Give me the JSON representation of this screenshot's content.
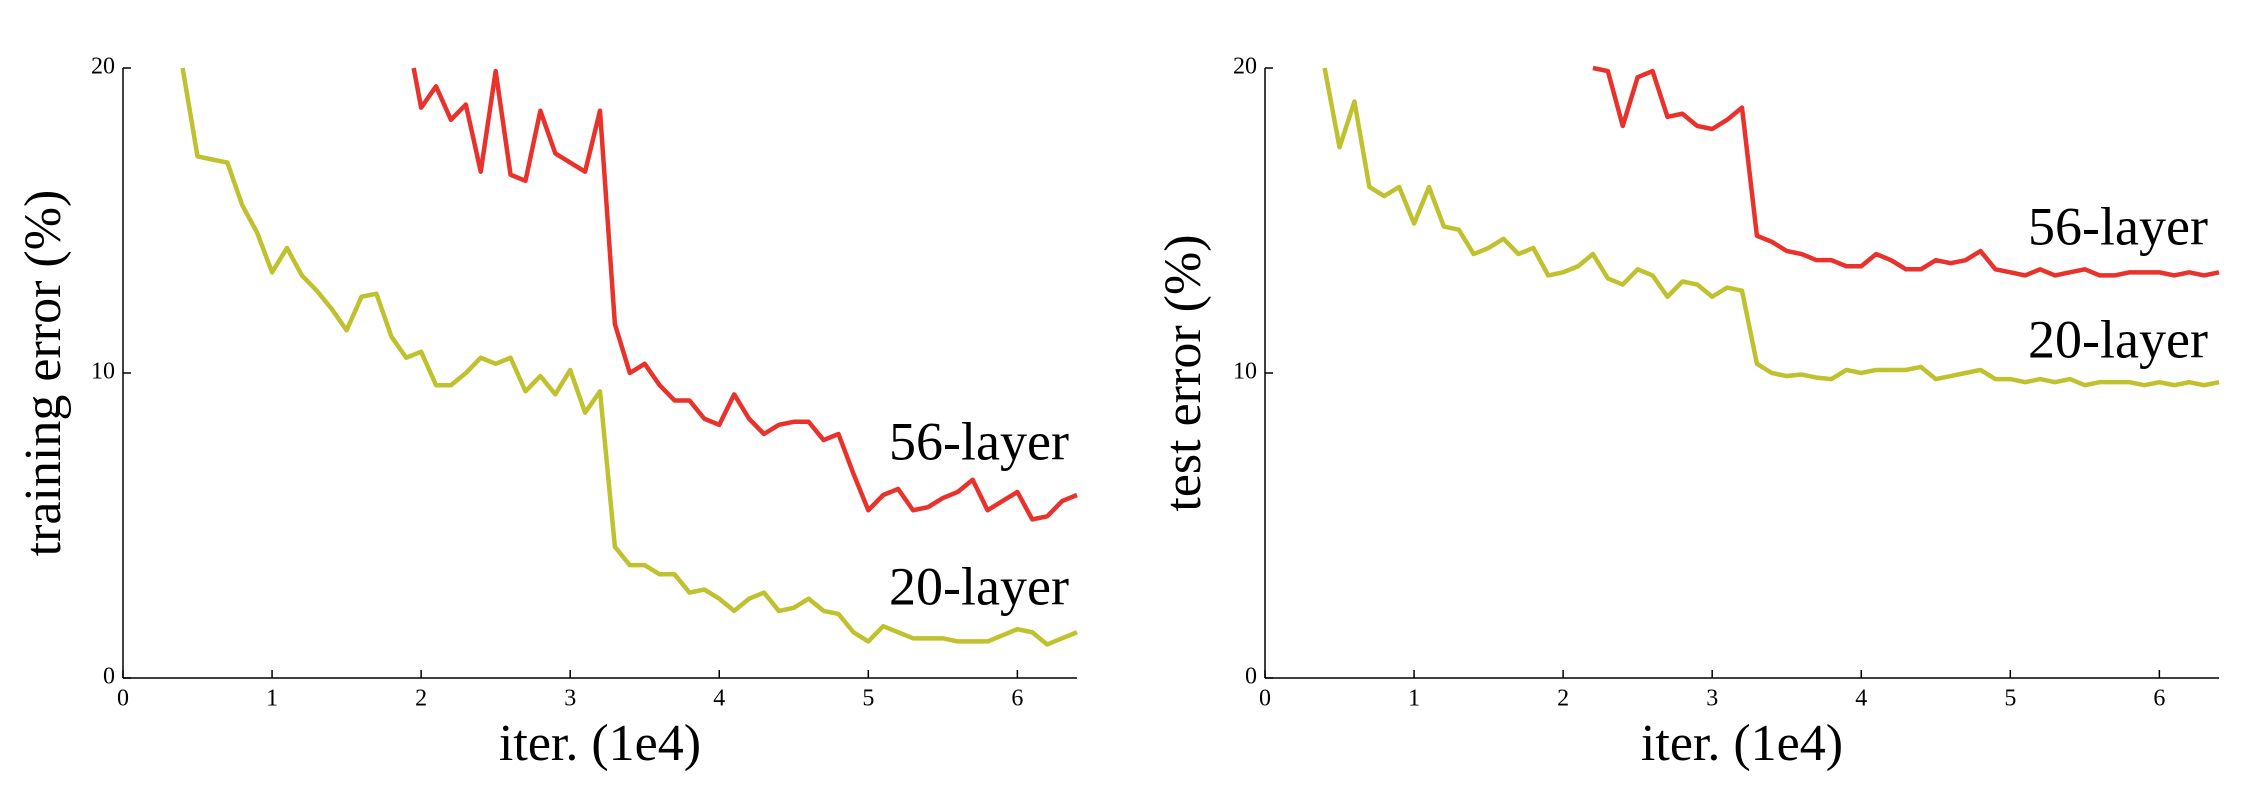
{
  "chart_data": [
    {
      "type": "line",
      "ylabel": "training error (%)",
      "xlabel": "iter. (1e4)",
      "xlim": [
        0,
        6.4
      ],
      "ylim": [
        0,
        20
      ],
      "xticks": [
        0,
        1,
        2,
        3,
        4,
        5,
        6
      ],
      "yticks": [
        0,
        10,
        20
      ],
      "series": [
        {
          "name": "56-layer",
          "color": "#e8322b",
          "x": [
            1.95,
            2.0,
            2.1,
            2.2,
            2.3,
            2.4,
            2.5,
            2.6,
            2.7,
            2.8,
            2.9,
            3.0,
            3.1,
            3.2,
            3.3,
            3.4,
            3.5,
            3.6,
            3.7,
            3.8,
            3.9,
            4.0,
            4.1,
            4.2,
            4.3,
            4.4,
            4.5,
            4.6,
            4.7,
            4.8,
            4.9,
            5.0,
            5.1,
            5.2,
            5.3,
            5.4,
            5.5,
            5.6,
            5.7,
            5.8,
            5.9,
            6.0,
            6.1,
            6.2,
            6.3,
            6.4
          ],
          "values": [
            20,
            18.7,
            19.4,
            18.3,
            18.8,
            16.6,
            19.9,
            16.5,
            16.3,
            18.6,
            17.2,
            16.9,
            16.6,
            18.6,
            11.6,
            10.0,
            10.3,
            9.6,
            9.1,
            9.1,
            8.5,
            8.3,
            9.3,
            8.5,
            8.0,
            8.3,
            8.4,
            8.4,
            7.8,
            8.0,
            6.7,
            5.5,
            6.0,
            6.2,
            5.5,
            5.6,
            5.9,
            6.1,
            6.5,
            5.5,
            5.8,
            6.1,
            5.2,
            5.3,
            5.8,
            6.0
          ]
        },
        {
          "name": "20-layer",
          "color": "#bfc22e",
          "x": [
            0.4,
            0.5,
            0.6,
            0.7,
            0.8,
            0.9,
            1.0,
            1.1,
            1.2,
            1.3,
            1.4,
            1.5,
            1.6,
            1.7,
            1.8,
            1.9,
            2.0,
            2.1,
            2.2,
            2.3,
            2.4,
            2.5,
            2.6,
            2.7,
            2.8,
            2.9,
            3.0,
            3.1,
            3.2,
            3.3,
            3.4,
            3.5,
            3.6,
            3.7,
            3.8,
            3.9,
            4.0,
            4.1,
            4.2,
            4.3,
            4.4,
            4.5,
            4.6,
            4.7,
            4.8,
            4.9,
            5.0,
            5.1,
            5.2,
            5.3,
            5.4,
            5.5,
            5.6,
            5.7,
            5.8,
            5.9,
            6.0,
            6.1,
            6.2,
            6.3,
            6.4
          ],
          "values": [
            20,
            17.1,
            17.0,
            16.9,
            15.5,
            14.6,
            13.3,
            14.1,
            13.2,
            12.7,
            12.1,
            11.4,
            12.5,
            12.6,
            11.2,
            10.5,
            10.7,
            9.6,
            9.6,
            10.0,
            10.5,
            10.3,
            10.5,
            9.4,
            9.9,
            9.3,
            10.1,
            8.7,
            9.4,
            4.3,
            3.7,
            3.7,
            3.4,
            3.4,
            2.8,
            2.9,
            2.6,
            2.2,
            2.6,
            2.8,
            2.2,
            2.3,
            2.6,
            2.2,
            2.1,
            1.5,
            1.2,
            1.7,
            1.5,
            1.3,
            1.3,
            1.3,
            1.2,
            1.2,
            1.2,
            1.4,
            1.6,
            1.5,
            1.1,
            1.3,
            1.5
          ]
        }
      ]
    },
    {
      "type": "line",
      "ylabel": "test error (%)",
      "xlabel": "iter. (1e4)",
      "xlim": [
        0,
        6.4
      ],
      "ylim": [
        0,
        20
      ],
      "xticks": [
        0,
        1,
        2,
        3,
        4,
        5,
        6
      ],
      "yticks": [
        0,
        10,
        20
      ],
      "series": [
        {
          "name": "56-layer",
          "color": "#e8322b",
          "x": [
            2.2,
            2.3,
            2.4,
            2.5,
            2.6,
            2.7,
            2.8,
            2.9,
            3.0,
            3.1,
            3.2,
            3.3,
            3.4,
            3.5,
            3.6,
            3.7,
            3.8,
            3.9,
            4.0,
            4.1,
            4.2,
            4.3,
            4.4,
            4.5,
            4.6,
            4.7,
            4.8,
            4.9,
            5.0,
            5.1,
            5.2,
            5.3,
            5.4,
            5.5,
            5.6,
            5.7,
            5.8,
            5.9,
            6.0,
            6.1,
            6.2,
            6.3,
            6.4
          ],
          "values": [
            20,
            19.9,
            18.1,
            19.7,
            19.9,
            18.4,
            18.5,
            18.1,
            18.0,
            18.3,
            18.7,
            14.5,
            14.3,
            14.0,
            13.9,
            13.7,
            13.7,
            13.5,
            13.5,
            13.9,
            13.7,
            13.4,
            13.4,
            13.7,
            13.6,
            13.7,
            14.0,
            13.4,
            13.3,
            13.2,
            13.4,
            13.2,
            13.3,
            13.4,
            13.2,
            13.2,
            13.3,
            13.3,
            13.3,
            13.2,
            13.3,
            13.2,
            13.3
          ]
        },
        {
          "name": "20-layer",
          "color": "#bfc22e",
          "x": [
            0.4,
            0.5,
            0.6,
            0.7,
            0.8,
            0.9,
            1.0,
            1.1,
            1.2,
            1.3,
            1.4,
            1.5,
            1.6,
            1.7,
            1.8,
            1.9,
            2.0,
            2.1,
            2.2,
            2.3,
            2.4,
            2.5,
            2.6,
            2.7,
            2.8,
            2.9,
            3.0,
            3.1,
            3.2,
            3.3,
            3.4,
            3.5,
            3.6,
            3.7,
            3.8,
            3.9,
            4.0,
            4.1,
            4.2,
            4.3,
            4.4,
            4.5,
            4.6,
            4.7,
            4.8,
            4.9,
            5.0,
            5.1,
            5.2,
            5.3,
            5.4,
            5.5,
            5.6,
            5.7,
            5.8,
            5.9,
            6.0,
            6.1,
            6.2,
            6.3,
            6.4
          ],
          "values": [
            20,
            17.4,
            18.9,
            16.1,
            15.8,
            16.1,
            14.9,
            16.1,
            14.8,
            14.7,
            13.9,
            14.1,
            14.4,
            13.9,
            14.1,
            13.2,
            13.3,
            13.5,
            13.9,
            13.1,
            12.9,
            13.4,
            13.2,
            12.5,
            13.0,
            12.9,
            12.5,
            12.8,
            12.7,
            10.3,
            10.0,
            9.9,
            9.95,
            9.85,
            9.8,
            10.1,
            10.0,
            10.1,
            10.1,
            10.1,
            10.2,
            9.8,
            9.9,
            10.0,
            10.1,
            9.8,
            9.8,
            9.7,
            9.8,
            9.7,
            9.8,
            9.6,
            9.7,
            9.7,
            9.7,
            9.6,
            9.7,
            9.6,
            9.7,
            9.6,
            9.7
          ]
        }
      ]
    }
  ]
}
